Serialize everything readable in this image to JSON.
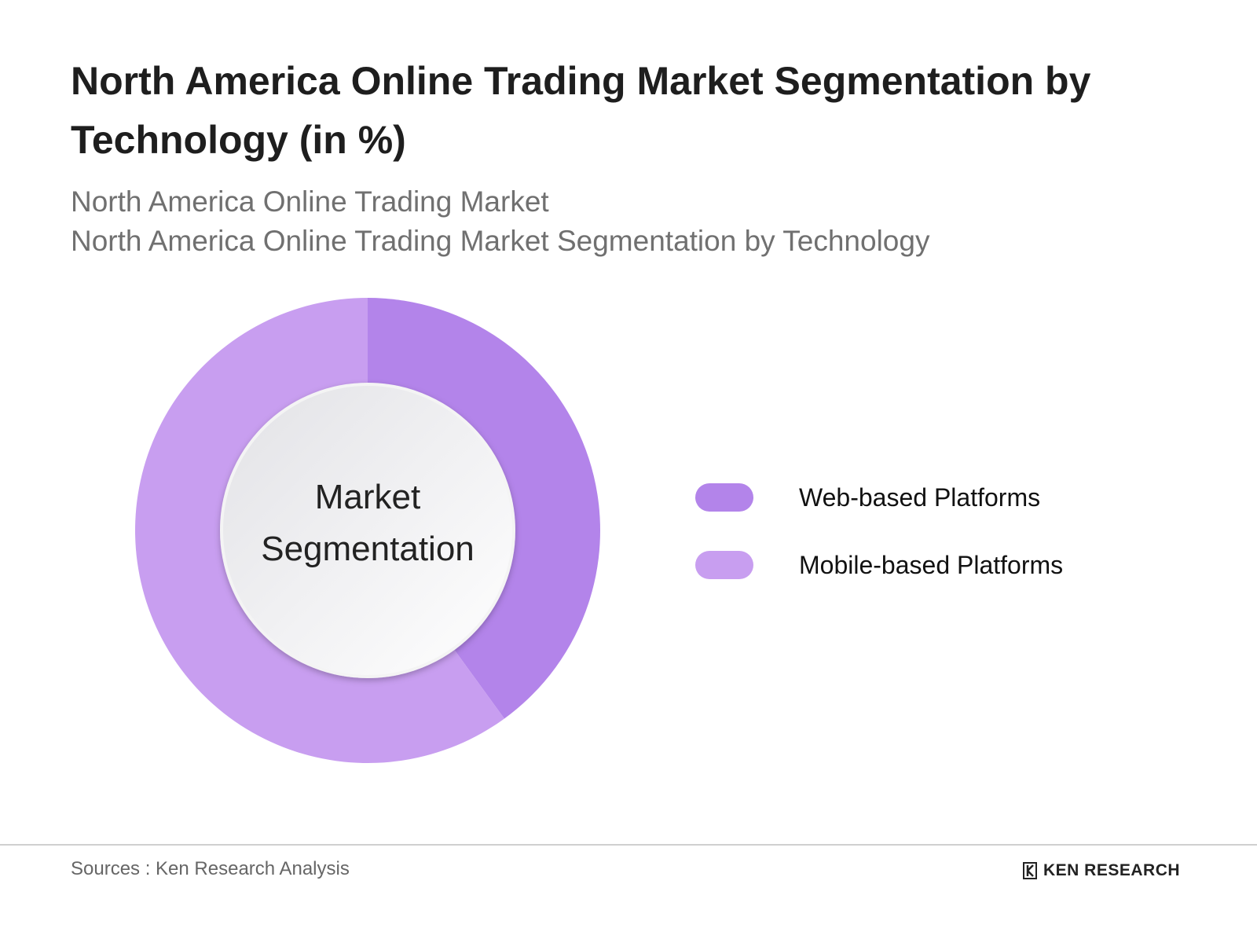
{
  "chart_data": {
    "type": "donut",
    "title": "North America Online Trading Market Segmentation by Technology (in %)",
    "subtitles": [
      "North America Online Trading Market",
      "North America Online Trading Market Segmentation by Technology"
    ],
    "center_label": "Market Segmentation",
    "categories": [
      "Web-based Platforms",
      "Mobile-based Platforms"
    ],
    "values": [
      40,
      60
    ],
    "colors": [
      "#b384ea",
      "#c89ef0"
    ],
    "legend": "right"
  },
  "footer": {
    "source": "Sources : Ken Research Analysis",
    "logo": "KEN RESEARCH"
  }
}
